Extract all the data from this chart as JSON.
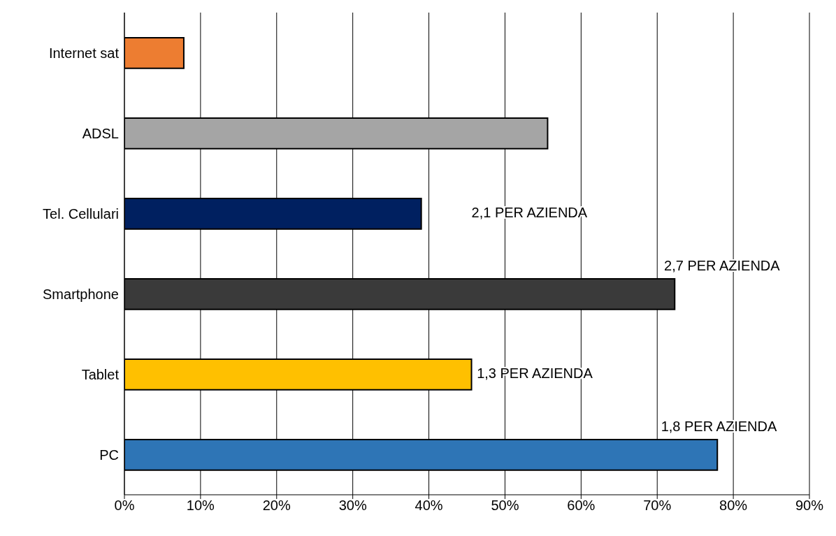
{
  "chart_data": {
    "type": "bar",
    "orientation": "horizontal",
    "categories": [
      "Internet sat",
      "ADSL",
      "Tel. Cellulari",
      "Smartphone",
      "Tablet",
      "PC"
    ],
    "values": [
      7.8,
      55.6,
      39.0,
      72.3,
      45.6,
      77.9
    ],
    "colors": [
      "#ed7d31",
      "#a5a5a5",
      "#002060",
      "#3a3a3a",
      "#ffc000",
      "#2e75b6"
    ],
    "xlim": [
      0,
      90
    ],
    "xticks": [
      {
        "value": 0,
        "label": "0%"
      },
      {
        "value": 10,
        "label": "10%"
      },
      {
        "value": 20,
        "label": "20%"
      },
      {
        "value": 30,
        "label": "30%"
      },
      {
        "value": 40,
        "label": "40%"
      },
      {
        "value": 50,
        "label": "50%"
      },
      {
        "value": 60,
        "label": "60%"
      },
      {
        "value": 70,
        "label": "70%"
      },
      {
        "value": 80,
        "label": "80%"
      },
      {
        "value": 90,
        "label": "90%"
      }
    ],
    "grid": "x",
    "legend": false,
    "annotations": [
      "2,1 PER AZIENDA",
      "2,7 PER AZIENDA",
      "1,3 PER AZIENDA",
      "1,8 PER AZIENDA"
    ]
  }
}
